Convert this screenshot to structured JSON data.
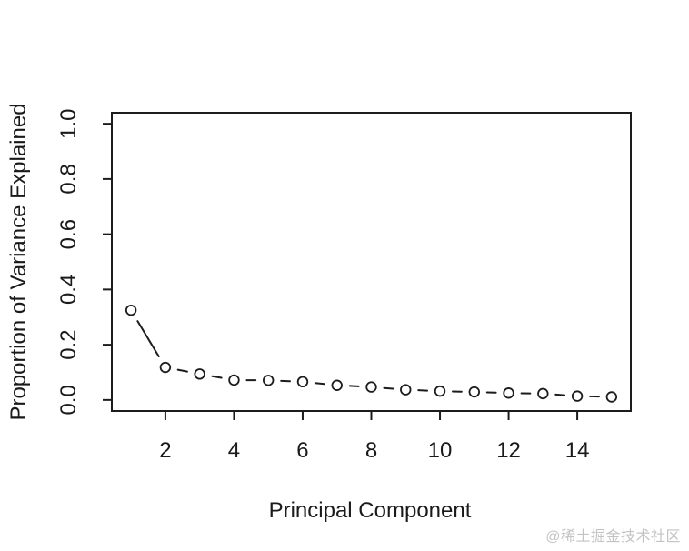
{
  "page": {
    "background": "#ffffff"
  },
  "watermark": "@稀土掘金技术社区",
  "chart_data": {
    "type": "line",
    "subtype": "scree-plot",
    "title": "",
    "xlabel": "Principal Component",
    "ylabel": "Proportion of Variance Explained",
    "x": [
      1,
      2,
      3,
      4,
      5,
      6,
      7,
      8,
      9,
      10,
      11,
      12,
      13,
      14,
      15
    ],
    "values": [
      0.325,
      0.118,
      0.094,
      0.072,
      0.071,
      0.066,
      0.053,
      0.047,
      0.037,
      0.032,
      0.029,
      0.025,
      0.023,
      0.014,
      0.011
    ],
    "xticks": [
      2,
      4,
      6,
      8,
      10,
      12,
      14
    ],
    "yticks": [
      0.0,
      0.2,
      0.4,
      0.6,
      0.8,
      1.0
    ],
    "xlim": [
      0.44,
      15.56
    ],
    "ylim": [
      -0.04,
      1.04
    ],
    "grid": false,
    "legend_position": "none",
    "marker": "open-circle",
    "marker_radius": 5.3,
    "line_style": "segments-between-points",
    "segment_trim": 14,
    "axis_color": "#1c1c1c",
    "marker_color": "#1c1c1c",
    "plot_background": "#ffffff"
  }
}
